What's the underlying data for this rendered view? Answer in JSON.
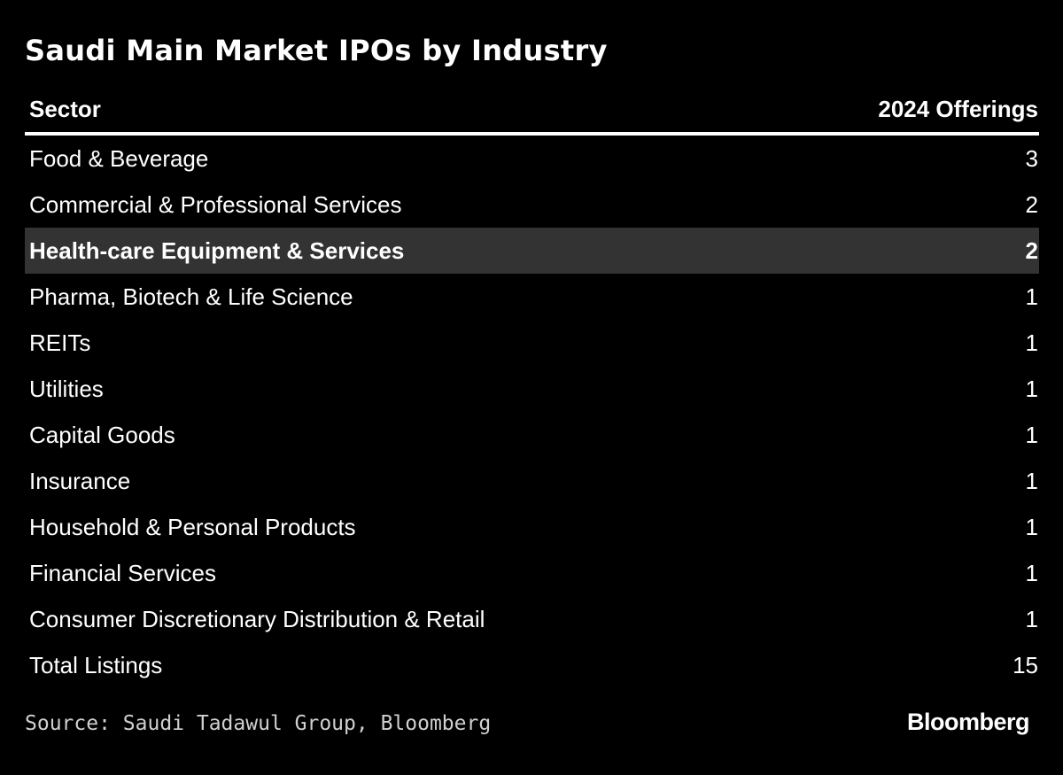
{
  "title": "Saudi Main Market IPOs by Industry",
  "table": {
    "columns": [
      "Sector",
      "2024 Offerings"
    ]
  },
  "chart_data": {
    "type": "table",
    "title": "Saudi Main Market IPOs by Industry",
    "columns": [
      "Sector",
      "2024 Offerings"
    ],
    "rows": [
      {
        "sector": "Food & Beverage",
        "offerings": "3",
        "highlight": false
      },
      {
        "sector": "Commercial & Professional Services",
        "offerings": "2",
        "highlight": false
      },
      {
        "sector": "Health-care Equipment & Services",
        "offerings": "2",
        "highlight": true
      },
      {
        "sector": "Pharma, Biotech & Life Science",
        "offerings": "1",
        "highlight": false
      },
      {
        "sector": "REITs",
        "offerings": "1",
        "highlight": false
      },
      {
        "sector": "Utilities",
        "offerings": "1",
        "highlight": false
      },
      {
        "sector": "Capital Goods",
        "offerings": "1",
        "highlight": false
      },
      {
        "sector": "Insurance",
        "offerings": "1",
        "highlight": false
      },
      {
        "sector": "Household & Personal Products",
        "offerings": "1",
        "highlight": false
      },
      {
        "sector": "Financial Services",
        "offerings": "1",
        "highlight": false
      },
      {
        "sector": "Consumer Discretionary Distribution & Retail",
        "offerings": "1",
        "highlight": false
      },
      {
        "sector": "Total Listings",
        "offerings": "15",
        "highlight": false
      }
    ]
  },
  "footer": {
    "source": "Source: Saudi Tadawul Group, Bloomberg",
    "logo": "Bloomberg"
  },
  "colors": {
    "background": "#000000",
    "text": "#ffffff",
    "highlight_row": "#333333",
    "source_text": "#d0d0d0"
  }
}
